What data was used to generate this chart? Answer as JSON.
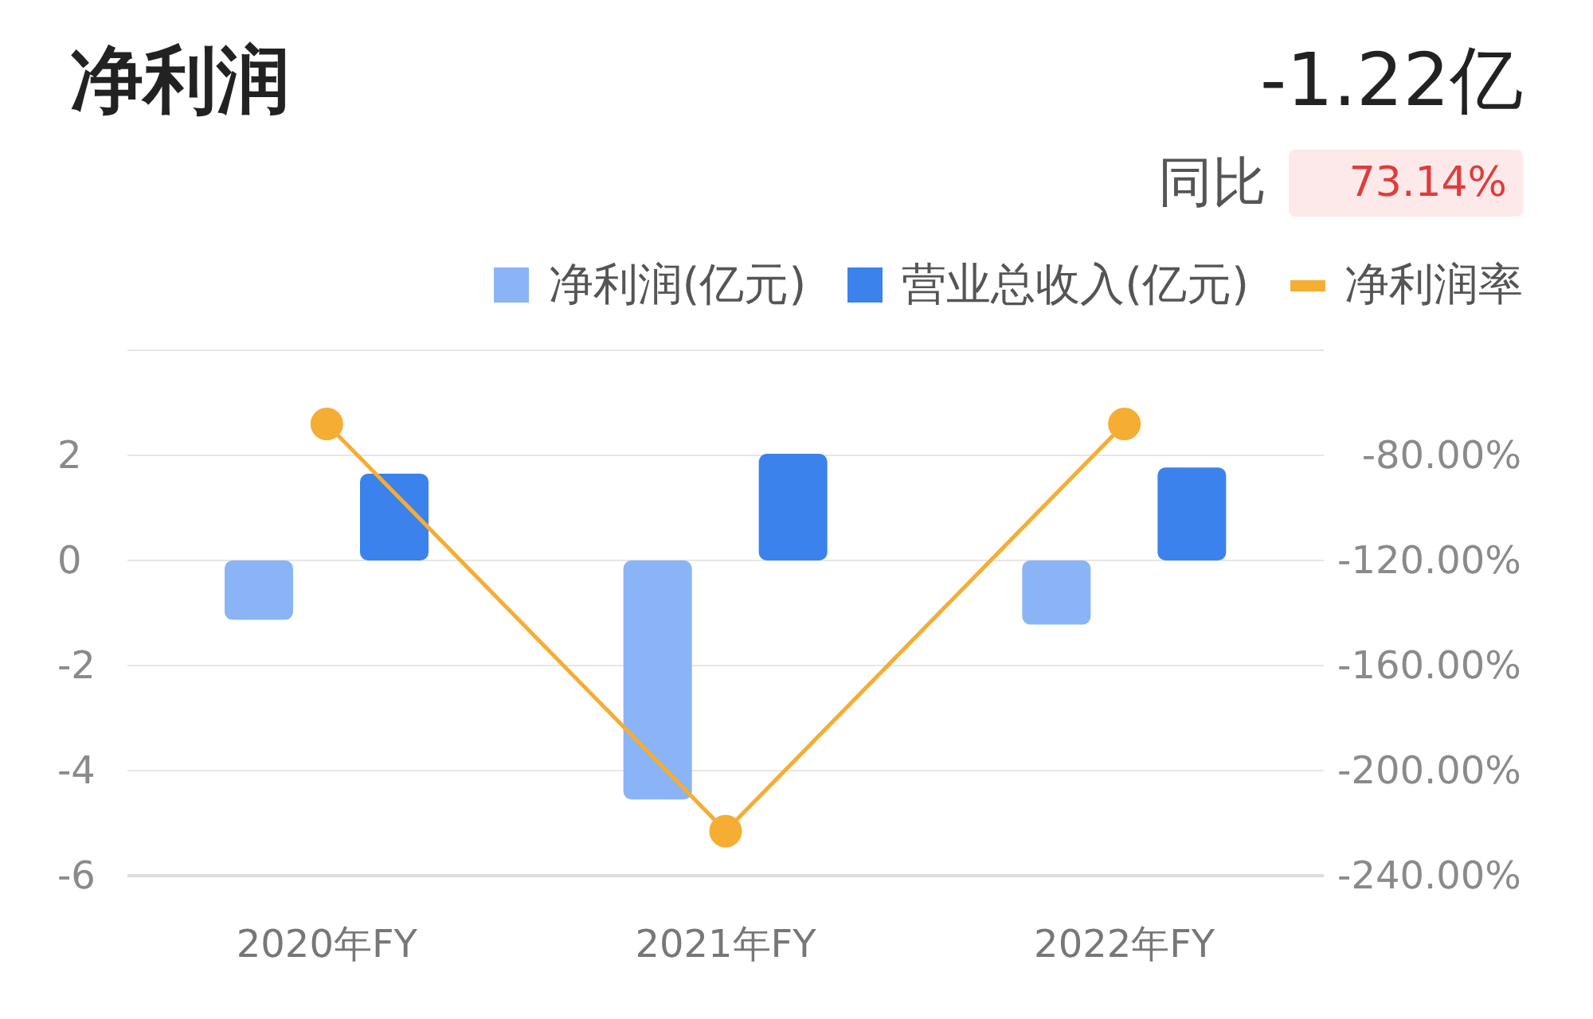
{
  "chart_data": {
    "type": "bar",
    "title": "净利润",
    "annotations": [
      "-1.22亿",
      "同比",
      "73.14%"
    ],
    "categories": [
      "2020年FY",
      "2021年FY",
      "2022年FY"
    ],
    "series": [
      {
        "name": "净利润(亿元)",
        "color": "#8ab4f5",
        "values": [
          -1.13,
          -4.55,
          -1.22
        ]
      },
      {
        "name": "营业总收入(亿元)",
        "color": "#3b82ec",
        "values": [
          1.65,
          2.03,
          1.77
        ]
      },
      {
        "name": "净利润率",
        "type": "line",
        "axis": "y2",
        "color": "#f5ad33",
        "values": [
          -68,
          -223,
          -68
        ]
      }
    ],
    "ylim": [
      -6,
      4
    ],
    "yticks": [
      -6,
      -4,
      -2,
      0,
      2
    ],
    "y2lim": [
      -240,
      -40
    ],
    "y2ticks": [
      {
        "value": -240,
        "label": "-240.00%"
      },
      {
        "value": -200,
        "label": "-200.00%"
      },
      {
        "value": -160,
        "label": "-160.00%"
      },
      {
        "value": -120,
        "label": "-120.00%"
      },
      {
        "value": -80,
        "label": "-80.00%"
      }
    ],
    "grid": "y",
    "legend": "top right",
    "marker": "circle",
    "line_style": "solid"
  }
}
